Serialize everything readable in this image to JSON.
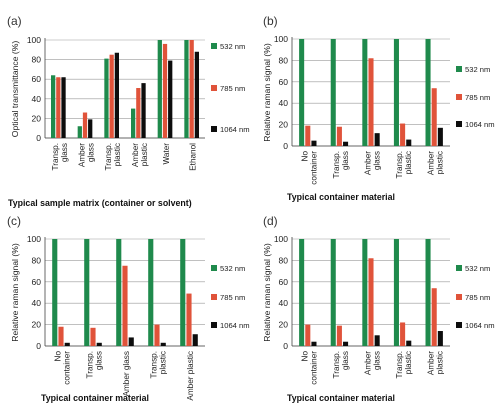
{
  "colors": {
    "nm532": "#1f8a4c",
    "nm785": "#e0533a",
    "nm1064": "#0d0d0d",
    "grid": "#9a9a9a"
  },
  "chart_data": [
    {
      "panel_label": "(a)",
      "type": "bar",
      "ylabel": "Optical transmittance (%)",
      "xlabel": "Typical sample matrix (container or solvent)",
      "ylim": [
        0,
        100
      ],
      "yticks": [
        0,
        20,
        40,
        60,
        80,
        100
      ],
      "grid": true,
      "legend_position": "right",
      "categories": [
        [
          "Transp.",
          "glass"
        ],
        [
          "Amber",
          "glass"
        ],
        [
          "Transp.",
          "plastic"
        ],
        [
          "Amber",
          "plastic"
        ],
        [
          "Water"
        ],
        [
          "Ethanol"
        ]
      ],
      "series": [
        {
          "name": "532 nm",
          "values": [
            64,
            12,
            81,
            30,
            100,
            100
          ]
        },
        {
          "name": "785 nm",
          "values": [
            62,
            26,
            85,
            51,
            96,
            100
          ]
        },
        {
          "name": "1064 nm",
          "values": [
            62,
            19,
            87,
            56,
            79,
            88
          ]
        }
      ]
    },
    {
      "panel_label": "(b)",
      "type": "bar",
      "ylabel": "Relative raman signal (%)",
      "xlabel": "Typical container material",
      "ylim": [
        0,
        100
      ],
      "yticks": [
        0,
        20,
        40,
        60,
        80,
        100
      ],
      "grid": true,
      "legend_position": "right",
      "categories": [
        [
          "No",
          "container"
        ],
        [
          "Transp.",
          "glass"
        ],
        [
          "Amber",
          "glass"
        ],
        [
          "Transp.",
          "plastic"
        ],
        [
          "Amber",
          "plastic"
        ]
      ],
      "series": [
        {
          "name": "532 nm",
          "values": [
            100,
            100,
            100,
            100,
            100
          ]
        },
        {
          "name": "785 nm",
          "values": [
            19,
            18,
            82,
            21,
            54
          ]
        },
        {
          "name": "1064 nm",
          "values": [
            5,
            4,
            12,
            6,
            17
          ]
        }
      ]
    },
    {
      "panel_label": "(c)",
      "type": "bar",
      "ylabel": "Relative raman signal (%)",
      "xlabel": "Typical container material",
      "ylim": [
        0,
        100
      ],
      "yticks": [
        0,
        20,
        40,
        60,
        80,
        100
      ],
      "grid": true,
      "legend_position": "right",
      "categories": [
        [
          "No",
          "container"
        ],
        [
          "Transp.",
          "glass"
        ],
        [
          "Amber glass"
        ],
        [
          "Transp.",
          "plastic"
        ],
        [
          "Amber plastic"
        ]
      ],
      "series": [
        {
          "name": "532 nm",
          "values": [
            100,
            100,
            100,
            100,
            100
          ]
        },
        {
          "name": "785 nm",
          "values": [
            18,
            17,
            75,
            20,
            49
          ]
        },
        {
          "name": "1064 nm",
          "values": [
            3,
            3,
            8,
            3,
            11
          ]
        }
      ]
    },
    {
      "panel_label": "(d)",
      "type": "bar",
      "ylabel": "Relative raman signal (%)",
      "xlabel": "Typical container material",
      "ylim": [
        0,
        100
      ],
      "yticks": [
        0,
        20,
        40,
        60,
        80,
        100
      ],
      "grid": true,
      "legend_position": "right",
      "categories": [
        [
          "No",
          "container"
        ],
        [
          "Transp.",
          "glass"
        ],
        [
          "Amber",
          "glass"
        ],
        [
          "Transp.",
          "plastic"
        ],
        [
          "Amber",
          "plastic"
        ]
      ],
      "series": [
        {
          "name": "532 nm",
          "values": [
            100,
            100,
            100,
            100,
            100
          ]
        },
        {
          "name": "785 nm",
          "values": [
            20,
            19,
            82,
            22,
            54
          ]
        },
        {
          "name": "1064 nm",
          "values": [
            4,
            4,
            10,
            5,
            14
          ]
        }
      ]
    }
  ]
}
